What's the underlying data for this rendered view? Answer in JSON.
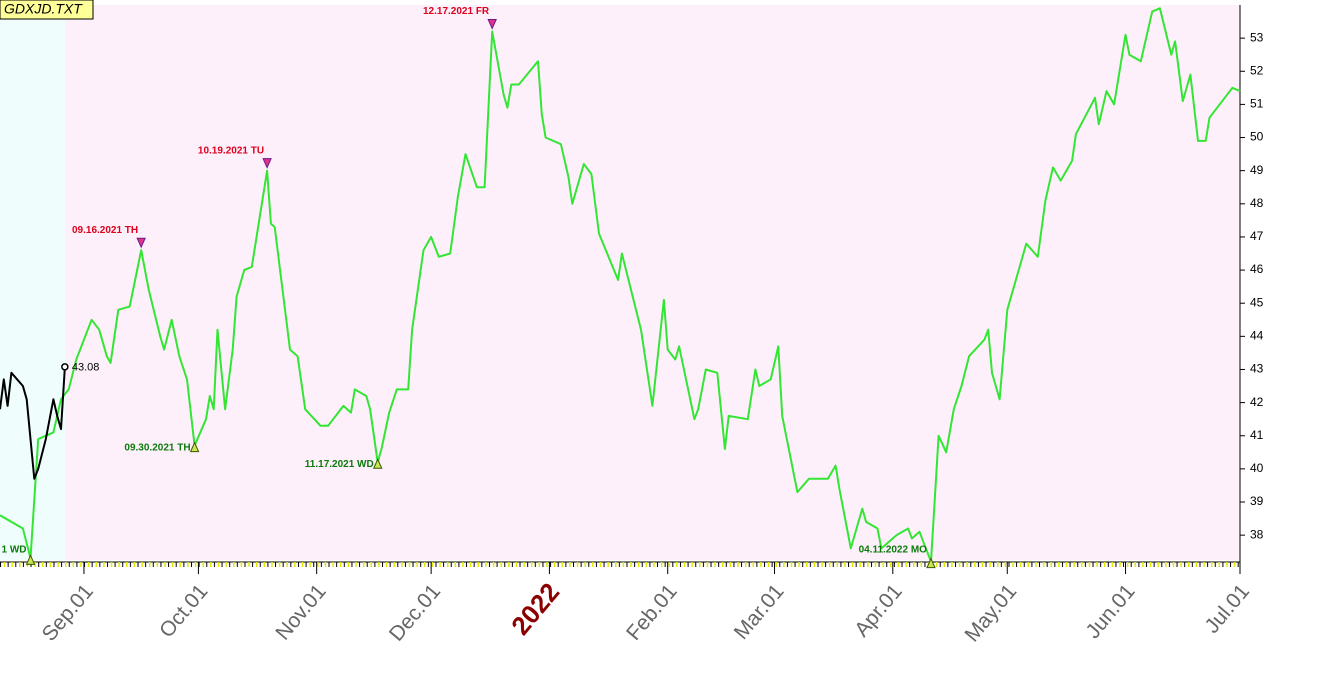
{
  "chart_data": {
    "type": "line",
    "title": "GDXJD.TXT",
    "xlim": [
      "2021-08-10",
      "2022-07-01"
    ],
    "xticks": [
      {
        "value": "2021-09-01",
        "label": "Sep.01"
      },
      {
        "value": "2021-10-01",
        "label": "Oct.01"
      },
      {
        "value": "2021-11-01",
        "label": "Nov.01"
      },
      {
        "value": "2021-12-01",
        "label": "Dec.01"
      },
      {
        "value": "2022-01-01",
        "label": "2022"
      },
      {
        "value": "2022-02-01",
        "label": "Feb.01"
      },
      {
        "value": "2022-03-01",
        "label": "Mar.01"
      },
      {
        "value": "2022-04-01",
        "label": "Apr.01"
      },
      {
        "value": "2022-05-01",
        "label": "May.01"
      },
      {
        "value": "2022-06-01",
        "label": "Jun.01"
      },
      {
        "value": "2022-07-01",
        "label": "Jul.01"
      }
    ],
    "ylim": [
      37.25,
      54
    ],
    "yticks": [
      38,
      39,
      40,
      41,
      42,
      43,
      44,
      45,
      46,
      47,
      48,
      49,
      50,
      51,
      52,
      53
    ],
    "series": [
      {
        "color": "#33e633",
        "x": [
          "2021-08-10",
          "2021-08-13",
          "2021-08-16",
          "2021-08-18",
          "2021-08-20",
          "2021-08-24",
          "2021-08-26",
          "2021-08-28",
          "2021-08-30",
          "2021-09-03",
          "2021-09-05",
          "2021-09-07",
          "2021-09-08",
          "2021-09-10",
          "2021-09-13",
          "2021-09-16",
          "2021-09-18",
          "2021-09-21",
          "2021-09-22",
          "2021-09-24",
          "2021-09-26",
          "2021-09-28",
          "2021-09-30",
          "2021-10-03",
          "2021-10-04",
          "2021-10-05",
          "2021-10-06",
          "2021-10-08",
          "2021-10-10",
          "2021-10-11",
          "2021-10-13",
          "2021-10-15",
          "2021-10-19",
          "2021-10-20",
          "2021-10-21",
          "2021-10-25",
          "2021-10-27",
          "2021-10-29",
          "2021-11-02",
          "2021-11-04",
          "2021-11-08",
          "2021-11-10",
          "2021-11-11",
          "2021-11-14",
          "2021-11-15",
          "2021-11-17",
          "2021-11-18",
          "2021-11-20",
          "2021-11-22",
          "2021-11-25",
          "2021-11-26",
          "2021-11-29",
          "2021-12-01",
          "2021-12-03",
          "2021-12-06",
          "2021-12-08",
          "2021-12-10",
          "2021-12-13",
          "2021-12-15",
          "2021-12-17",
          "2021-12-20",
          "2021-12-21",
          "2021-12-22",
          "2021-12-24",
          "2021-12-29",
          "2021-12-30",
          "2021-12-31",
          "2022-01-04",
          "2022-01-06",
          "2022-01-07",
          "2022-01-10",
          "2022-01-12",
          "2022-01-14",
          "2022-01-19",
          "2022-01-20",
          "2022-01-25",
          "2022-01-28",
          "2022-01-31",
          "2022-02-01",
          "2022-02-03",
          "2022-02-04",
          "2022-02-08",
          "2022-02-09",
          "2022-02-11",
          "2022-02-14",
          "2022-02-16",
          "2022-02-17",
          "2022-02-22",
          "2022-02-24",
          "2022-02-25",
          "2022-02-28",
          "2022-03-02",
          "2022-03-03",
          "2022-03-07",
          "2022-03-10",
          "2022-03-15",
          "2022-03-17",
          "2022-03-18",
          "2022-03-21",
          "2022-03-24",
          "2022-03-25",
          "2022-03-28",
          "2022-03-29",
          "2022-04-02",
          "2022-04-05",
          "2022-04-06",
          "2022-04-08",
          "2022-04-11",
          "2022-04-13",
          "2022-04-15",
          "2022-04-17",
          "2022-04-19",
          "2022-04-21",
          "2022-04-25",
          "2022-04-26",
          "2022-04-27",
          "2022-04-29",
          "2022-05-01",
          "2022-05-04",
          "2022-05-06",
          "2022-05-09",
          "2022-05-11",
          "2022-05-13",
          "2022-05-15",
          "2022-05-18",
          "2022-05-19",
          "2022-05-24",
          "2022-05-25",
          "2022-05-27",
          "2022-05-29",
          "2022-06-01",
          "2022-06-02",
          "2022-06-05",
          "2022-06-08",
          "2022-06-10",
          "2022-06-13",
          "2022-06-14",
          "2022-06-16",
          "2022-06-18",
          "2022-06-20",
          "2022-06-22",
          "2022-06-23",
          "2022-06-29",
          "2022-07-01"
        ],
        "values": [
          38.6,
          38.4,
          38.2,
          37.3,
          40.9,
          41.1,
          42.1,
          42.4,
          43.3,
          44.5,
          44.2,
          43.4,
          43.2,
          44.8,
          44.9,
          46.6,
          45.4,
          44.0,
          43.6,
          44.5,
          43.4,
          42.7,
          40.7,
          41.5,
          42.2,
          41.8,
          44.2,
          41.8,
          43.6,
          45.2,
          46.0,
          46.1,
          49.0,
          47.4,
          47.3,
          43.6,
          43.4,
          41.8,
          41.3,
          41.3,
          41.9,
          41.7,
          42.4,
          42.2,
          41.8,
          40.2,
          40.6,
          41.7,
          42.4,
          42.4,
          44.2,
          46.6,
          47.0,
          46.4,
          46.5,
          48.2,
          49.5,
          48.5,
          48.5,
          53.2,
          51.3,
          50.9,
          51.6,
          51.6,
          52.3,
          50.7,
          50.0,
          49.8,
          48.8,
          48.0,
          49.2,
          48.9,
          47.1,
          45.7,
          46.5,
          44.2,
          41.9,
          45.1,
          43.6,
          43.3,
          43.7,
          41.5,
          41.8,
          43.0,
          42.9,
          40.6,
          41.6,
          41.5,
          43.0,
          42.5,
          42.7,
          43.7,
          41.6,
          39.3,
          39.7,
          39.7,
          40.1,
          39.4,
          37.6,
          38.8,
          38.4,
          38.2,
          37.6,
          38.0,
          38.2,
          37.9,
          38.1,
          37.2,
          41.0,
          40.5,
          41.8,
          42.5,
          43.4,
          43.9,
          44.2,
          42.9,
          42.1,
          44.8,
          46.0,
          46.8,
          46.4,
          48.1,
          49.1,
          48.7,
          49.3,
          50.1,
          51.2,
          50.4,
          51.4,
          51.0,
          53.1,
          52.5,
          52.3,
          53.8,
          53.9,
          52.5,
          52.9,
          51.1,
          51.9,
          49.9,
          49.9,
          50.6,
          51.5,
          51.4
        ]
      },
      {
        "color": "#000000",
        "x": [
          "2021-08-10",
          "2021-08-11",
          "2021-08-12",
          "2021-08-13",
          "2021-08-16",
          "2021-08-17",
          "2021-08-19",
          "2021-08-20",
          "2021-08-22",
          "2021-08-24",
          "2021-08-25",
          "2021-08-26",
          "2021-08-27"
        ],
        "values": [
          41.8,
          42.7,
          41.9,
          42.9,
          42.5,
          42.1,
          39.7,
          40.0,
          40.9,
          42.1,
          41.6,
          41.2,
          43.08
        ]
      }
    ],
    "peak_color": "#e0001c",
    "trough_color": "#0b7a0b",
    "annotations": [
      {
        "text": "1 WD",
        "x": "2021-08-18",
        "y": 37.3,
        "kind": "trough"
      },
      {
        "text": "09.16.2021 TH",
        "x": "2021-09-16",
        "y": 46.6,
        "kind": "peak"
      },
      {
        "text": "09.30.2021 TH",
        "x": "2021-09-30",
        "y": 40.7,
        "kind": "trough"
      },
      {
        "text": "10.19.2021 TU",
        "x": "2021-10-19",
        "y": 49.0,
        "kind": "peak"
      },
      {
        "text": "11.17.2021 WD",
        "x": "2021-11-17",
        "y": 40.2,
        "kind": "trough"
      },
      {
        "text": "12.17.2021 FR",
        "x": "2021-12-17",
        "y": 53.2,
        "kind": "peak"
      },
      {
        "text": "04.11.2022 MO",
        "x": "2022-04-11",
        "y": 37.2,
        "kind": "trough"
      }
    ]
  }
}
